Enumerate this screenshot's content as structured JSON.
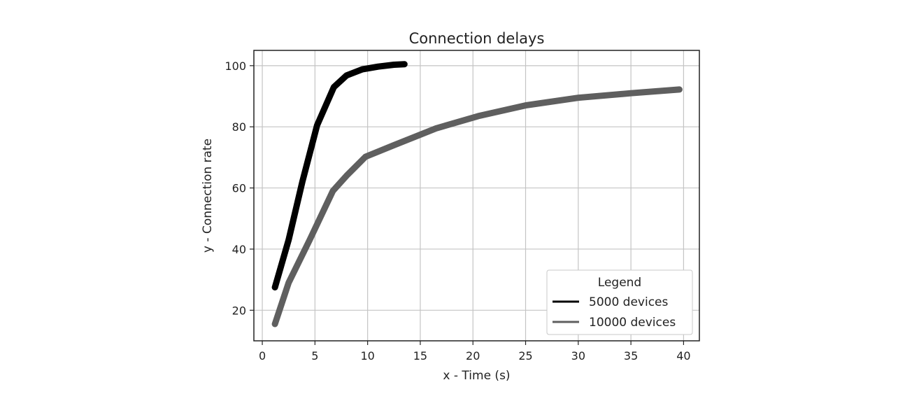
{
  "chart_data": {
    "type": "line",
    "title": "Connection delays",
    "xlabel": "x - Time (s)",
    "ylabel": "y - Connection rate",
    "xlim": [
      -0.8,
      41.5
    ],
    "ylim": [
      10,
      105
    ],
    "xticks": [
      0,
      5,
      10,
      15,
      20,
      25,
      30,
      35,
      40
    ],
    "yticks": [
      20,
      40,
      60,
      80,
      100
    ],
    "grid": true,
    "legend": {
      "title": "Legend",
      "position": "lower-right"
    },
    "series": [
      {
        "name": "5000 devices",
        "color": "#000000",
        "points": [
          [
            1.2,
            27.5
          ],
          [
            2.5,
            43
          ],
          [
            3.8,
            62
          ],
          [
            5.2,
            80.5
          ],
          [
            6.8,
            93
          ],
          [
            8.0,
            96.8
          ],
          [
            9.5,
            98.8
          ],
          [
            11.0,
            99.7
          ],
          [
            12.5,
            100.3
          ],
          [
            13.5,
            100.5
          ]
        ]
      },
      {
        "name": "10000 devices",
        "color": "#5f5f5f",
        "points": [
          [
            1.2,
            15.5
          ],
          [
            2.5,
            29
          ],
          [
            4.5,
            43
          ],
          [
            6.7,
            59
          ],
          [
            8.0,
            64
          ],
          [
            9.8,
            70.2
          ],
          [
            12.5,
            74
          ],
          [
            16.5,
            79.5
          ],
          [
            20.5,
            83.5
          ],
          [
            25.0,
            87
          ],
          [
            30.0,
            89.5
          ],
          [
            35.0,
            91
          ],
          [
            39.6,
            92.2
          ]
        ]
      }
    ]
  }
}
